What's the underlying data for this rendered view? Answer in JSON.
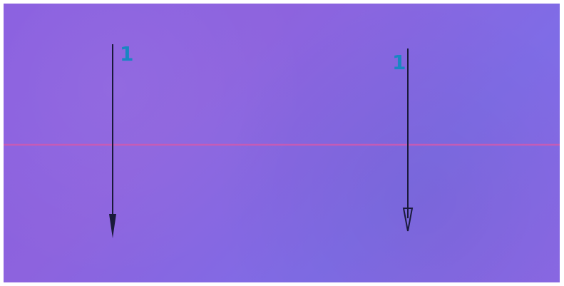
{
  "diagram": {
    "paper_color": "#8a65e2",
    "crease_color": "#d05ab0",
    "arrow_color": "#1a1a3a",
    "label_color": "#1a86c2",
    "elements": [
      {
        "id": "fold-line",
        "kind": "horizontal-crease"
      },
      {
        "id": "arrow-left",
        "kind": "fold-arrow-down",
        "label": "1"
      },
      {
        "id": "arrow-right",
        "kind": "fold-arrow-down",
        "label": "1"
      }
    ]
  }
}
